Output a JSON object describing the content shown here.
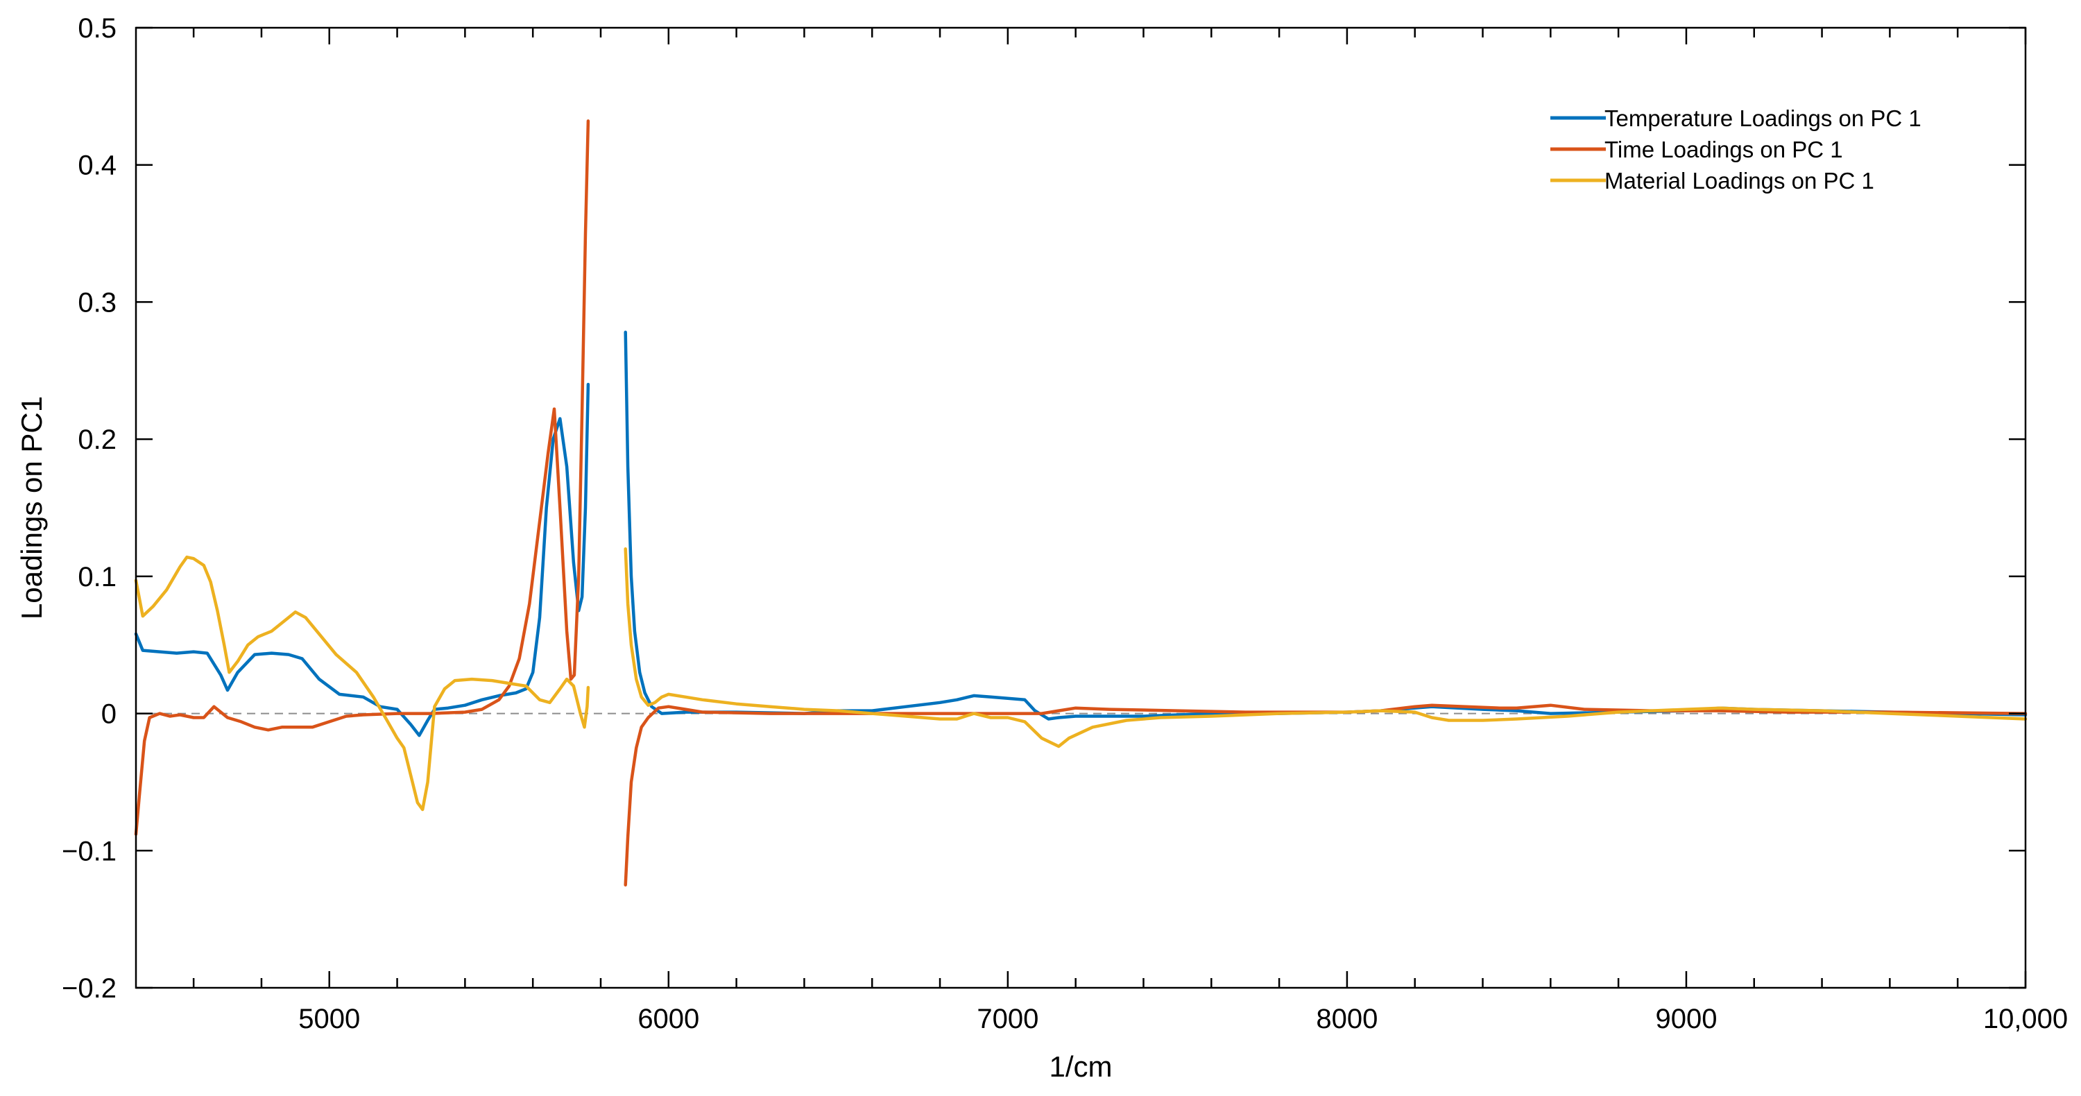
{
  "chart_data": {
    "type": "line",
    "xlabel": "1/cm",
    "ylabel": "Loadings on PC1",
    "xlim": [
      4430,
      10000
    ],
    "ylim": [
      -0.2,
      0.5
    ],
    "x_ticks": [
      5000,
      6000,
      7000,
      8000,
      9000,
      10000
    ],
    "x_tick_labels": [
      "5000",
      "6000",
      "7000",
      "8000",
      "9000",
      "10,000"
    ],
    "x_minor_step": 200,
    "y_ticks": [
      -0.2,
      -0.1,
      0,
      0.1,
      0.2,
      0.3,
      0.4,
      0.5
    ],
    "y_tick_labels": [
      "−0.2",
      "−0.1",
      "0",
      "0.1",
      "0.2",
      "0.3",
      "0.4",
      "0.5"
    ],
    "grid": false,
    "zero_line": "dashed",
    "legend_position": "top-right",
    "series": [
      {
        "name": "Temperature Loadings on PC 1",
        "color": "#0072BD",
        "segments": [
          [
            [
              4430,
              0.058
            ],
            [
              4450,
              0.046
            ],
            [
              4500,
              0.045
            ],
            [
              4550,
              0.044
            ],
            [
              4600,
              0.045
            ],
            [
              4640,
              0.044
            ],
            [
              4680,
              0.028
            ],
            [
              4700,
              0.017
            ],
            [
              4730,
              0.03
            ],
            [
              4780,
              0.043
            ],
            [
              4830,
              0.044
            ],
            [
              4880,
              0.043
            ],
            [
              4920,
              0.04
            ],
            [
              4970,
              0.025
            ],
            [
              5030,
              0.014
            ],
            [
              5100,
              0.012
            ],
            [
              5150,
              0.005
            ],
            [
              5200,
              0.003
            ],
            [
              5240,
              -0.008
            ],
            [
              5265,
              -0.016
            ],
            [
              5290,
              -0.005
            ],
            [
              5310,
              0.003
            ],
            [
              5350,
              0.004
            ],
            [
              5400,
              0.006
            ],
            [
              5450,
              0.01
            ],
            [
              5500,
              0.013
            ],
            [
              5550,
              0.015
            ],
            [
              5580,
              0.018
            ],
            [
              5600,
              0.03
            ],
            [
              5620,
              0.07
            ],
            [
              5640,
              0.15
            ],
            [
              5660,
              0.2
            ],
            [
              5680,
              0.215
            ],
            [
              5700,
              0.18
            ],
            [
              5720,
              0.11
            ],
            [
              5735,
              0.075
            ],
            [
              5745,
              0.085
            ],
            [
              5755,
              0.15
            ],
            [
              5763,
              0.24
            ]
          ],
          [
            [
              5873,
              0.278
            ],
            [
              5880,
              0.18
            ],
            [
              5890,
              0.1
            ],
            [
              5900,
              0.06
            ],
            [
              5915,
              0.03
            ],
            [
              5930,
              0.015
            ],
            [
              5950,
              0.005
            ],
            [
              5980,
              0.0
            ],
            [
              6050,
              0.001
            ],
            [
              6200,
              0.001
            ],
            [
              6400,
              0.0
            ],
            [
              6500,
              0.002
            ],
            [
              6600,
              0.002
            ],
            [
              6700,
              0.005
            ],
            [
              6800,
              0.008
            ],
            [
              6850,
              0.01
            ],
            [
              6900,
              0.013
            ],
            [
              6950,
              0.012
            ],
            [
              7000,
              0.011
            ],
            [
              7050,
              0.01
            ],
            [
              7080,
              0.002
            ],
            [
              7120,
              -0.004
            ],
            [
              7150,
              -0.003
            ],
            [
              7200,
              -0.002
            ],
            [
              7300,
              -0.002
            ],
            [
              7400,
              -0.002
            ],
            [
              7500,
              -0.001
            ],
            [
              7600,
              0.0
            ],
            [
              7800,
              0.0
            ],
            [
              8000,
              0.001
            ],
            [
              8100,
              0.002
            ],
            [
              8250,
              0.005
            ],
            [
              8400,
              0.003
            ],
            [
              8500,
              0.002
            ],
            [
              8600,
              0.0
            ],
            [
              8800,
              0.001
            ],
            [
              9000,
              0.002
            ],
            [
              9100,
              0.004
            ],
            [
              9200,
              0.003
            ],
            [
              9400,
              0.002
            ],
            [
              9600,
              0.001
            ],
            [
              9800,
              0.0
            ],
            [
              10000,
              -0.001
            ]
          ]
        ]
      },
      {
        "name": "Time Loadings on PC 1",
        "color": "#D95319",
        "segments": [
          [
            [
              4430,
              -0.088
            ],
            [
              4440,
              -0.06
            ],
            [
              4455,
              -0.02
            ],
            [
              4470,
              -0.003
            ],
            [
              4500,
              0.0
            ],
            [
              4530,
              -0.002
            ],
            [
              4560,
              -0.001
            ],
            [
              4600,
              -0.003
            ],
            [
              4630,
              -0.003
            ],
            [
              4660,
              0.005
            ],
            [
              4680,
              0.001
            ],
            [
              4700,
              -0.003
            ],
            [
              4740,
              -0.006
            ],
            [
              4780,
              -0.01
            ],
            [
              4820,
              -0.012
            ],
            [
              4860,
              -0.01
            ],
            [
              4900,
              -0.01
            ],
            [
              4950,
              -0.01
            ],
            [
              5000,
              -0.006
            ],
            [
              5050,
              -0.002
            ],
            [
              5100,
              -0.001
            ],
            [
              5200,
              0.0
            ],
            [
              5300,
              0.0
            ],
            [
              5400,
              0.001
            ],
            [
              5450,
              0.003
            ],
            [
              5500,
              0.01
            ],
            [
              5530,
              0.02
            ],
            [
              5560,
              0.04
            ],
            [
              5590,
              0.08
            ],
            [
              5620,
              0.14
            ],
            [
              5645,
              0.19
            ],
            [
              5663,
              0.222
            ],
            [
              5680,
              0.15
            ],
            [
              5700,
              0.06
            ],
            [
              5712,
              0.025
            ],
            [
              5722,
              0.028
            ],
            [
              5735,
              0.1
            ],
            [
              5745,
              0.22
            ],
            [
              5755,
              0.35
            ],
            [
              5763,
              0.432
            ]
          ],
          [
            [
              5873,
              -0.125
            ],
            [
              5880,
              -0.09
            ],
            [
              5890,
              -0.05
            ],
            [
              5905,
              -0.025
            ],
            [
              5920,
              -0.01
            ],
            [
              5940,
              -0.003
            ],
            [
              5970,
              0.004
            ],
            [
              6000,
              0.005
            ],
            [
              6050,
              0.003
            ],
            [
              6100,
              0.001
            ],
            [
              6300,
              0.0
            ],
            [
              6500,
              0.0
            ],
            [
              6700,
              0.0
            ],
            [
              6900,
              0.0
            ],
            [
              7000,
              0.0
            ],
            [
              7100,
              0.0
            ],
            [
              7150,
              0.002
            ],
            [
              7200,
              0.004
            ],
            [
              7300,
              0.003
            ],
            [
              7500,
              0.002
            ],
            [
              7700,
              0.001
            ],
            [
              8000,
              0.001
            ],
            [
              8100,
              0.002
            ],
            [
              8200,
              0.005
            ],
            [
              8250,
              0.006
            ],
            [
              8350,
              0.005
            ],
            [
              8450,
              0.004
            ],
            [
              8500,
              0.004
            ],
            [
              8550,
              0.005
            ],
            [
              8600,
              0.006
            ],
            [
              8700,
              0.003
            ],
            [
              8900,
              0.002
            ],
            [
              9100,
              0.002
            ],
            [
              9300,
              0.001
            ],
            [
              9600,
              0.001
            ],
            [
              10000,
              0.0
            ]
          ]
        ]
      },
      {
        "name": "Material Loadings on PC 1",
        "color": "#EDB120",
        "segments": [
          [
            [
              4430,
              0.097
            ],
            [
              4450,
              0.071
            ],
            [
              4480,
              0.078
            ],
            [
              4520,
              0.09
            ],
            [
              4560,
              0.107
            ],
            [
              4580,
              0.114
            ],
            [
              4600,
              0.113
            ],
            [
              4630,
              0.108
            ],
            [
              4650,
              0.096
            ],
            [
              4670,
              0.075
            ],
            [
              4690,
              0.05
            ],
            [
              4705,
              0.03
            ],
            [
              4730,
              0.038
            ],
            [
              4760,
              0.05
            ],
            [
              4790,
              0.056
            ],
            [
              4830,
              0.06
            ],
            [
              4870,
              0.068
            ],
            [
              4900,
              0.074
            ],
            [
              4930,
              0.07
            ],
            [
              4970,
              0.058
            ],
            [
              5020,
              0.043
            ],
            [
              5080,
              0.03
            ],
            [
              5130,
              0.012
            ],
            [
              5170,
              -0.005
            ],
            [
              5200,
              -0.018
            ],
            [
              5220,
              -0.025
            ],
            [
              5240,
              -0.045
            ],
            [
              5260,
              -0.065
            ],
            [
              5275,
              -0.07
            ],
            [
              5290,
              -0.05
            ],
            [
              5310,
              0.005
            ],
            [
              5340,
              0.018
            ],
            [
              5370,
              0.024
            ],
            [
              5420,
              0.025
            ],
            [
              5480,
              0.024
            ],
            [
              5530,
              0.022
            ],
            [
              5580,
              0.02
            ],
            [
              5620,
              0.01
            ],
            [
              5650,
              0.008
            ],
            [
              5680,
              0.018
            ],
            [
              5700,
              0.025
            ],
            [
              5720,
              0.02
            ],
            [
              5740,
              0.0
            ],
            [
              5752,
              -0.01
            ],
            [
              5760,
              0.005
            ],
            [
              5763,
              0.019
            ]
          ],
          [
            [
              5873,
              0.12
            ],
            [
              5880,
              0.08
            ],
            [
              5890,
              0.05
            ],
            [
              5905,
              0.025
            ],
            [
              5920,
              0.012
            ],
            [
              5940,
              0.006
            ],
            [
              5960,
              0.008
            ],
            [
              5980,
              0.012
            ],
            [
              6000,
              0.014
            ],
            [
              6050,
              0.012
            ],
            [
              6100,
              0.01
            ],
            [
              6200,
              0.007
            ],
            [
              6300,
              0.005
            ],
            [
              6400,
              0.003
            ],
            [
              6500,
              0.002
            ],
            [
              6600,
              0.0
            ],
            [
              6700,
              -0.002
            ],
            [
              6800,
              -0.004
            ],
            [
              6850,
              -0.004
            ],
            [
              6900,
              0.0
            ],
            [
              6950,
              -0.003
            ],
            [
              7000,
              -0.003
            ],
            [
              7050,
              -0.006
            ],
            [
              7100,
              -0.018
            ],
            [
              7150,
              -0.024
            ],
            [
              7180,
              -0.018
            ],
            [
              7250,
              -0.01
            ],
            [
              7350,
              -0.005
            ],
            [
              7450,
              -0.003
            ],
            [
              7600,
              -0.002
            ],
            [
              7800,
              0.0
            ],
            [
              8000,
              0.001
            ],
            [
              8100,
              0.002
            ],
            [
              8200,
              0.001
            ],
            [
              8250,
              -0.003
            ],
            [
              8300,
              -0.005
            ],
            [
              8400,
              -0.005
            ],
            [
              8500,
              -0.004
            ],
            [
              8650,
              -0.002
            ],
            [
              8800,
              0.001
            ],
            [
              9000,
              0.003
            ],
            [
              9100,
              0.004
            ],
            [
              9200,
              0.003
            ],
            [
              9400,
              0.002
            ],
            [
              9600,
              0.0
            ],
            [
              9800,
              -0.002
            ],
            [
              10000,
              -0.004
            ]
          ]
        ]
      }
    ]
  }
}
